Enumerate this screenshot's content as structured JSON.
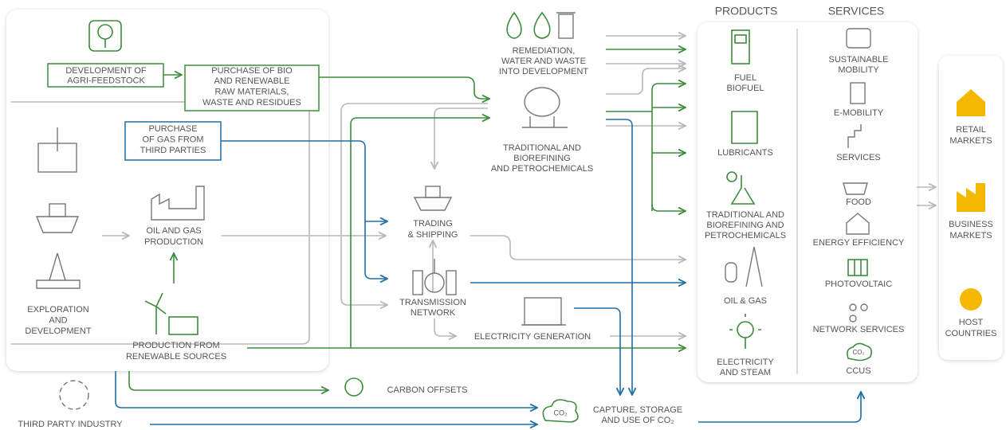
{
  "headers": {
    "products": "PRODUCTS",
    "services": "SERVICES"
  },
  "left": {
    "exploration": [
      "EXPLORATION",
      "AND",
      "DEVELOPMENT"
    ],
    "oil_gas": [
      "OIL AND GAS",
      "PRODUCTION"
    ],
    "renewables": [
      "PRODUCTION FROM",
      "RENEWABLE SOURCES"
    ],
    "agri": [
      "DEVELOPMENT OF",
      "AGRI-FEEDSTOCK"
    ],
    "bio": [
      "PURCHASE OF BIO",
      "AND RENEWABLE",
      "RAW MATERIALS,",
      "WASTE AND RESIDUES"
    ],
    "gas": [
      "PURCHASE",
      "OF GAS FROM",
      "THIRD PARTIES"
    ]
  },
  "middle": {
    "remediation": [
      "REMEDIATION,",
      "WATER AND WASTE",
      "INTO DEVELOPMENT"
    ],
    "refining": [
      "TRADITIONAL AND",
      "BIOREFINING",
      "AND PETROCHEMICALS"
    ],
    "trading": [
      "TRADING",
      "& SHIPPING"
    ],
    "transmission": [
      "TRANSMISSION",
      "NETWORK"
    ],
    "electricity": [
      "ELECTRICITY GENERATION"
    ],
    "offsets": [
      "CARBON OFFSETS"
    ],
    "ccus": [
      "CAPTURE, STORAGE",
      "AND USE OF CO₂"
    ],
    "third_party": [
      "THIRD PARTY INDUSTRY"
    ],
    "co2_icon": "CO₂"
  },
  "products": [
    {
      "label": [
        "FUEL",
        "BIOFUEL"
      ]
    },
    {
      "label": [
        "LUBRICANTS"
      ]
    },
    {
      "label": [
        "TRADITIONAL AND",
        "BIOREFINING AND",
        "PETROCHEMICALS"
      ]
    },
    {
      "label": [
        "OIL & GAS"
      ]
    },
    {
      "label": [
        "ELECTRICITY",
        "AND STEAM"
      ]
    }
  ],
  "services": [
    {
      "label": [
        "SUSTAINABLE",
        "MOBILITY"
      ]
    },
    {
      "label": [
        "E-MOBILITY"
      ]
    },
    {
      "label": [
        "SERVICES"
      ]
    },
    {
      "label": [
        "FOOD"
      ]
    },
    {
      "label": [
        "ENERGY EFFICIENCY"
      ]
    },
    {
      "label": [
        "PHOTOVOLTAIC"
      ]
    },
    {
      "label": [
        "NETWORK SERVICES"
      ]
    },
    {
      "label": [
        "CCUS"
      ]
    }
  ],
  "markets": [
    {
      "label": [
        "RETAIL",
        "MARKETS"
      ]
    },
    {
      "label": [
        "BUSINESS",
        "MARKETS"
      ]
    },
    {
      "label": [
        "HOST",
        "COUNTRIES"
      ]
    }
  ]
}
